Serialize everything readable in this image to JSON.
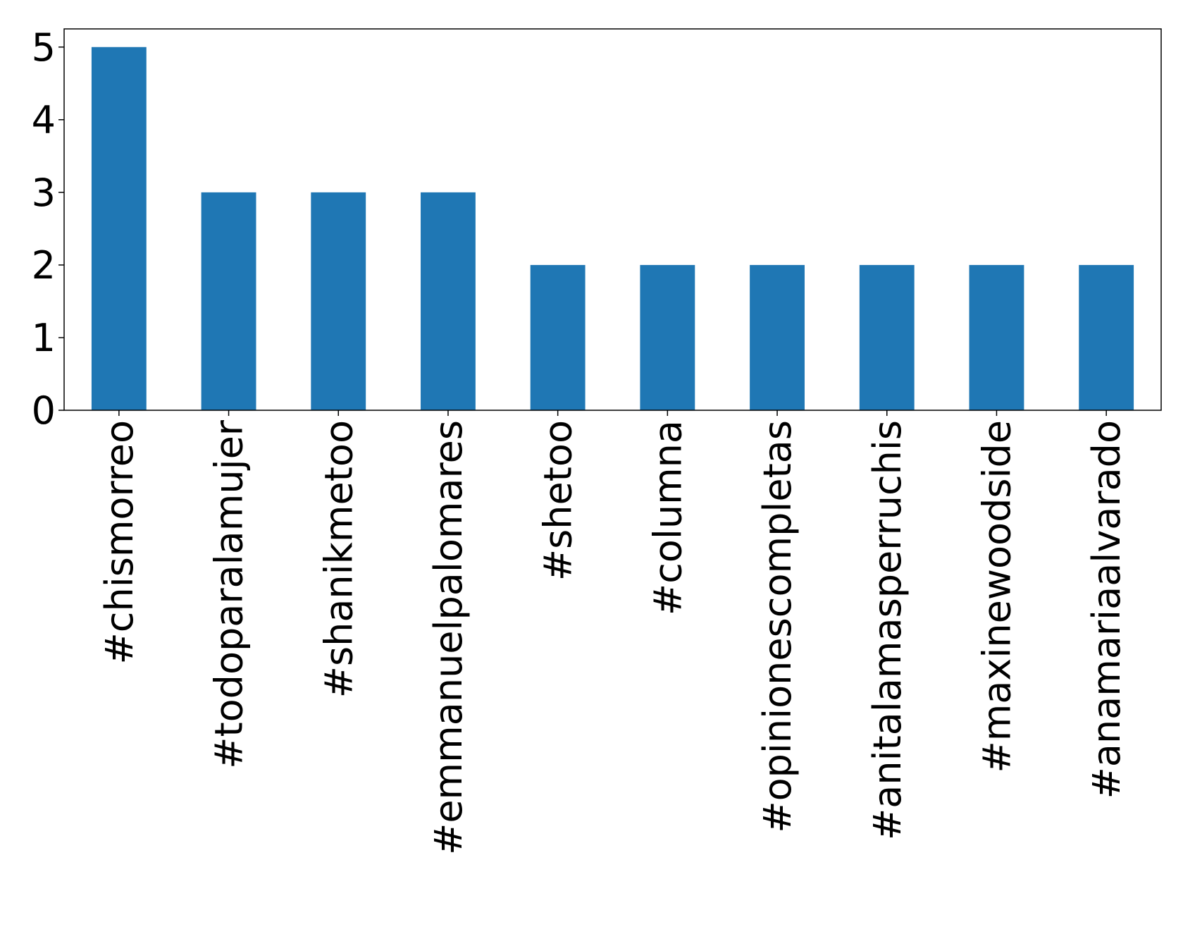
{
  "chart_data": {
    "type": "bar",
    "categories": [
      "#chismorreo",
      "#todoparalamujer",
      "#shanikmetoo",
      "#emmanuelpalomares",
      "#shetoo",
      "#columna",
      "#opinionescompletas",
      "#anitalamasperruchis",
      "#maxinewoodside",
      "#anamariaalvarado"
    ],
    "values": [
      5,
      3,
      3,
      3,
      2,
      2,
      2,
      2,
      2,
      2
    ],
    "color": "#1f77b4",
    "ylim": [
      0,
      5.25
    ],
    "yticks": [
      0,
      1,
      2,
      3,
      4,
      5
    ],
    "grid": false
  }
}
